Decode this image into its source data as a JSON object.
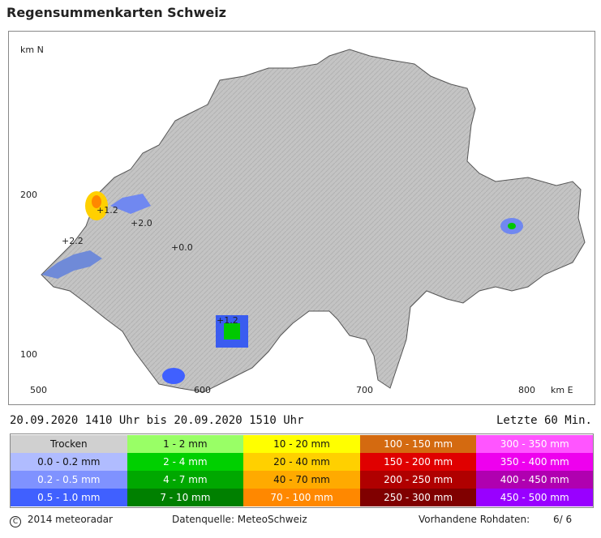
{
  "title": "Regensummenkarten Schweiz",
  "map": {
    "y_axis_label": "km N",
    "x_axis_label": "km E",
    "y_ticks": [
      "200",
      "100"
    ],
    "x_ticks": [
      "500",
      "600",
      "700",
      "800"
    ],
    "value_labels": [
      "+0.0",
      "+1.2",
      "+2.2",
      "+1.2",
      "+2.0"
    ],
    "colors": {
      "relief": "#c8c8c8",
      "outside": "#ffffff",
      "rain_light": "#a8b8f0",
      "rain_mid": "#7088f0",
      "rain_heavy": "#3a5cf0",
      "water": "#6f8ad8"
    }
  },
  "timebar": {
    "from_date": "20.09.2020",
    "from_time": "1410 Uhr",
    "connector": "bis",
    "to_date": "20.09.2020",
    "to_time": "1510 Uhr",
    "period": "Letzte 60 Min."
  },
  "legend": [
    {
      "label": "Trocken",
      "color": "#d0d0d0"
    },
    {
      "label": "1 - 2 mm",
      "color": "#99ff66"
    },
    {
      "label": "10 - 20 mm",
      "color": "#ffff00"
    },
    {
      "label": "100 - 150 mm",
      "color": "#d46a10"
    },
    {
      "label": "300 - 350 mm",
      "color": "#ff55ff"
    },
    {
      "label": "0.0 - 0.2 mm",
      "color": "#b0bcff"
    },
    {
      "label": "2 - 4 mm",
      "color": "#00d000"
    },
    {
      "label": "20 - 40 mm",
      "color": "#ffd000"
    },
    {
      "label": "150 - 200 mm",
      "color": "#e00000"
    },
    {
      "label": "350 - 400 mm",
      "color": "#ee00ee"
    },
    {
      "label": "0.2 - 0.5 mm",
      "color": "#7f92ff"
    },
    {
      "label": "4 - 7 mm",
      "color": "#00a800"
    },
    {
      "label": "40 - 70 mm",
      "color": "#ffaa00"
    },
    {
      "label": "200 - 250 mm",
      "color": "#b00000"
    },
    {
      "label": "400 - 450 mm",
      "color": "#b000b0"
    },
    {
      "label": "0.5 - 1.0 mm",
      "color": "#4060ff"
    },
    {
      "label": "7 - 10 mm",
      "color": "#008000"
    },
    {
      "label": "70 - 100 mm",
      "color": "#ff8800"
    },
    {
      "label": "250 - 300 mm",
      "color": "#800000"
    },
    {
      "label": "450 - 500 mm",
      "color": "#9900ff"
    }
  ],
  "footer": {
    "copyright_symbol": "C",
    "copyright": "2014  meteoradar",
    "source": "Datenquelle: MeteoSchweiz",
    "available_label": "Vorhandene Rohdaten:",
    "available_value": "6/  6"
  }
}
